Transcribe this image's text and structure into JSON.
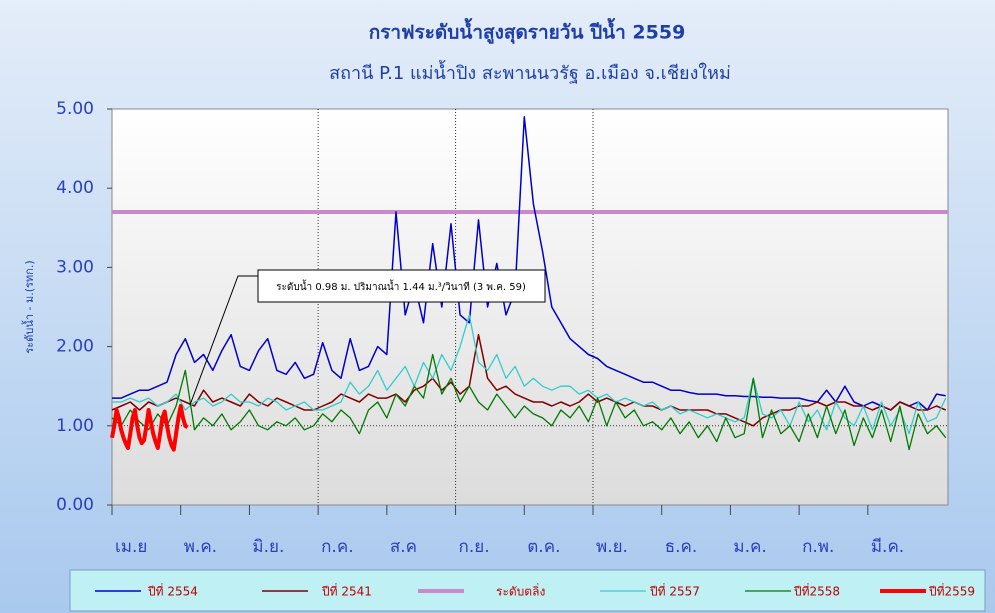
{
  "chart_data": {
    "type": "line",
    "title": "กราฟระดับน้ำสูงสุดรายวัน ปีน้ำ 2559",
    "subtitle": "สถานี P.1 แม่น้ำปิง สะพานนวรัฐ อ.เมือง จ.เชียงใหม่",
    "y_label": "ระดับน้ำ - ม.(รทก.)",
    "annotation": "ระดับน้ำ 0.98 ม. ปริมาณน้ำ 1.44 ม.³/วินาที (3 พ.ค. 59)",
    "ylim": [
      0,
      5
    ],
    "yticks": [
      {
        "value": 0,
        "label": "0.00"
      },
      {
        "value": 1,
        "label": "1.00"
      },
      {
        "value": 2,
        "label": "2.00"
      },
      {
        "value": 3,
        "label": "3.00"
      },
      {
        "value": 4,
        "label": "4.00"
      },
      {
        "value": 5,
        "label": "5.00"
      }
    ],
    "ygrid": [
      1
    ],
    "xlim": [
      0,
      365
    ],
    "xticks": [
      {
        "value": 0,
        "label": "เม.ย"
      },
      {
        "value": 30,
        "label": "พ.ค."
      },
      {
        "value": 60,
        "label": "มิ.ย."
      },
      {
        "value": 90,
        "label": "ก.ค."
      },
      {
        "value": 120,
        "label": "ส.ค"
      },
      {
        "value": 150,
        "label": "ก.ย."
      },
      {
        "value": 180,
        "label": "ต.ค."
      },
      {
        "value": 210,
        "label": "พ.ย."
      },
      {
        "value": 240,
        "label": "ธ.ค."
      },
      {
        "value": 270,
        "label": "ม.ค."
      },
      {
        "value": 300,
        "label": "ก.พ."
      },
      {
        "value": 330,
        "label": "มี.ค."
      }
    ],
    "xgrid": [
      90,
      150,
      210
    ],
    "x": [
      0,
      4,
      8,
      12,
      16,
      20,
      24,
      28,
      32,
      36,
      40,
      44,
      48,
      52,
      56,
      60,
      64,
      68,
      72,
      76,
      80,
      84,
      88,
      92,
      96,
      100,
      104,
      108,
      112,
      116,
      120,
      124,
      128,
      132,
      136,
      140,
      144,
      148,
      152,
      156,
      160,
      164,
      168,
      172,
      176,
      180,
      184,
      188,
      192,
      196,
      200,
      204,
      208,
      212,
      216,
      220,
      224,
      228,
      232,
      236,
      240,
      244,
      248,
      252,
      256,
      260,
      264,
      268,
      272,
      276,
      280,
      284,
      288,
      292,
      296,
      300,
      304,
      308,
      312,
      316,
      320,
      324,
      328,
      332,
      336,
      340,
      344,
      348,
      352,
      356,
      360,
      364
    ],
    "series": [
      {
        "name": "ปีที่ 2554",
        "color": "#0000cc",
        "width": 1.5,
        "values": [
          1.35,
          1.35,
          1.4,
          1.45,
          1.45,
          1.5,
          1.55,
          1.9,
          2.1,
          1.8,
          1.9,
          1.7,
          1.95,
          2.15,
          1.75,
          1.7,
          1.95,
          2.1,
          1.7,
          1.65,
          1.8,
          1.6,
          1.65,
          2.05,
          1.7,
          1.6,
          2.1,
          1.7,
          1.75,
          2.0,
          1.9,
          3.7,
          2.4,
          2.8,
          2.3,
          3.3,
          2.5,
          3.55,
          2.4,
          2.3,
          3.6,
          2.5,
          3.05,
          2.4,
          2.7,
          4.9,
          3.8,
          3.2,
          2.5,
          2.3,
          2.1,
          2.0,
          1.9,
          1.85,
          1.75,
          1.7,
          1.65,
          1.6,
          1.55,
          1.55,
          1.5,
          1.45,
          1.45,
          1.42,
          1.4,
          1.4,
          1.4,
          1.38,
          1.38,
          1.37,
          1.37,
          1.36,
          1.36,
          1.35,
          1.35,
          1.35,
          1.32,
          1.3,
          1.45,
          1.3,
          1.5,
          1.3,
          1.25,
          1.3,
          1.25,
          1.2,
          1.3,
          1.25,
          1.3,
          1.2,
          1.4,
          1.38
        ]
      },
      {
        "name": "ปีที่ 2541",
        "color": "#800000",
        "width": 1.5,
        "values": [
          1.2,
          1.25,
          1.3,
          1.2,
          1.3,
          1.25,
          1.3,
          1.35,
          1.3,
          1.25,
          1.45,
          1.3,
          1.35,
          1.3,
          1.25,
          1.4,
          1.3,
          1.25,
          1.35,
          1.3,
          1.25,
          1.2,
          1.2,
          1.25,
          1.3,
          1.4,
          1.35,
          1.3,
          1.4,
          1.35,
          1.35,
          1.4,
          1.3,
          1.45,
          1.5,
          1.6,
          1.45,
          1.55,
          1.4,
          1.5,
          2.15,
          1.6,
          1.45,
          1.5,
          1.4,
          1.35,
          1.3,
          1.3,
          1.25,
          1.3,
          1.25,
          1.3,
          1.4,
          1.3,
          1.35,
          1.3,
          1.25,
          1.3,
          1.25,
          1.25,
          1.2,
          1.25,
          1.2,
          1.2,
          1.2,
          1.2,
          1.15,
          1.15,
          1.1,
          1.05,
          1.0,
          1.1,
          1.15,
          1.2,
          1.2,
          1.25,
          1.25,
          1.3,
          1.25,
          1.3,
          1.3,
          1.25,
          1.25,
          1.2,
          1.25,
          1.2,
          1.3,
          1.25,
          1.2,
          1.2,
          1.25,
          1.2
        ]
      },
      {
        "name": "ปีที่ 2557",
        "color": "#33cccc",
        "width": 1.3,
        "values": [
          1.3,
          1.3,
          1.35,
          1.3,
          1.35,
          1.25,
          1.3,
          1.4,
          1.2,
          1.3,
          1.35,
          1.25,
          1.3,
          1.4,
          1.3,
          1.3,
          1.25,
          1.35,
          1.3,
          1.2,
          1.25,
          1.3,
          1.2,
          1.2,
          1.25,
          1.3,
          1.55,
          1.4,
          1.5,
          1.7,
          1.45,
          1.6,
          1.75,
          1.5,
          1.8,
          1.6,
          1.9,
          1.7,
          2.0,
          2.4,
          1.8,
          1.7,
          1.9,
          1.6,
          1.75,
          1.5,
          1.6,
          1.5,
          1.45,
          1.5,
          1.5,
          1.4,
          1.45,
          1.35,
          1.4,
          1.3,
          1.35,
          1.3,
          1.25,
          1.3,
          1.2,
          1.25,
          1.15,
          1.2,
          1.15,
          1.1,
          1.15,
          1.1,
          1.05,
          1.1,
          1.6,
          1.15,
          1.1,
          1.2,
          1.0,
          1.3,
          1.05,
          1.2,
          0.95,
          1.3,
          1.1,
          1.0,
          1.25,
          0.95,
          1.3,
          1.0,
          1.2,
          0.9,
          1.3,
          1.05,
          1.1,
          1.35
        ]
      },
      {
        "name": "ปีที่2558",
        "color": "#007a00",
        "width": 1.3,
        "values": [
          1.1,
          1.0,
          1.2,
          1.05,
          0.95,
          1.15,
          1.0,
          1.25,
          1.7,
          0.95,
          1.1,
          1.0,
          1.15,
          0.95,
          1.05,
          1.2,
          1.0,
          0.95,
          1.05,
          1.0,
          1.1,
          0.95,
          1.0,
          1.15,
          1.05,
          1.2,
          1.1,
          0.9,
          1.2,
          1.3,
          1.1,
          1.4,
          1.25,
          1.5,
          1.35,
          1.9,
          1.4,
          1.6,
          1.3,
          1.5,
          1.3,
          1.2,
          1.4,
          1.25,
          1.1,
          1.25,
          1.15,
          1.1,
          1.0,
          1.2,
          1.1,
          1.25,
          1.05,
          1.35,
          1.0,
          1.3,
          1.1,
          1.2,
          1.0,
          1.05,
          0.95,
          1.1,
          0.9,
          1.05,
          0.85,
          1.0,
          0.8,
          1.1,
          0.85,
          0.9,
          1.6,
          0.85,
          1.2,
          0.9,
          1.0,
          0.8,
          1.15,
          0.85,
          1.25,
          0.9,
          1.2,
          0.75,
          1.1,
          0.85,
          1.2,
          0.8,
          1.25,
          0.7,
          1.15,
          0.9,
          1.0,
          0.85
        ]
      },
      {
        "name": "ปีที่2559",
        "color": "#ff0000",
        "width": 4,
        "x": [
          0,
          1,
          2,
          3,
          4,
          5,
          6,
          7,
          8,
          9,
          10,
          11,
          12,
          13,
          14,
          15,
          16,
          17,
          18,
          19,
          20,
          21,
          22,
          23,
          24,
          25,
          26,
          27,
          28,
          29,
          30,
          31,
          32,
          33
        ],
        "values": [
          0.85,
          1.0,
          1.2,
          1.1,
          0.95,
          0.85,
          0.78,
          0.72,
          0.9,
          1.1,
          1.2,
          1.0,
          0.85,
          0.78,
          0.82,
          1.0,
          1.2,
          1.05,
          0.9,
          0.8,
          0.72,
          0.9,
          1.1,
          1.18,
          1.0,
          0.85,
          0.75,
          0.7,
          0.9,
          1.1,
          1.25,
          1.1,
          1.0,
          0.98
        ]
      }
    ],
    "reference_lines": [
      {
        "name": "ระดับตลิ่ง",
        "color": "#cc88cc",
        "value": 3.7
      }
    ]
  }
}
